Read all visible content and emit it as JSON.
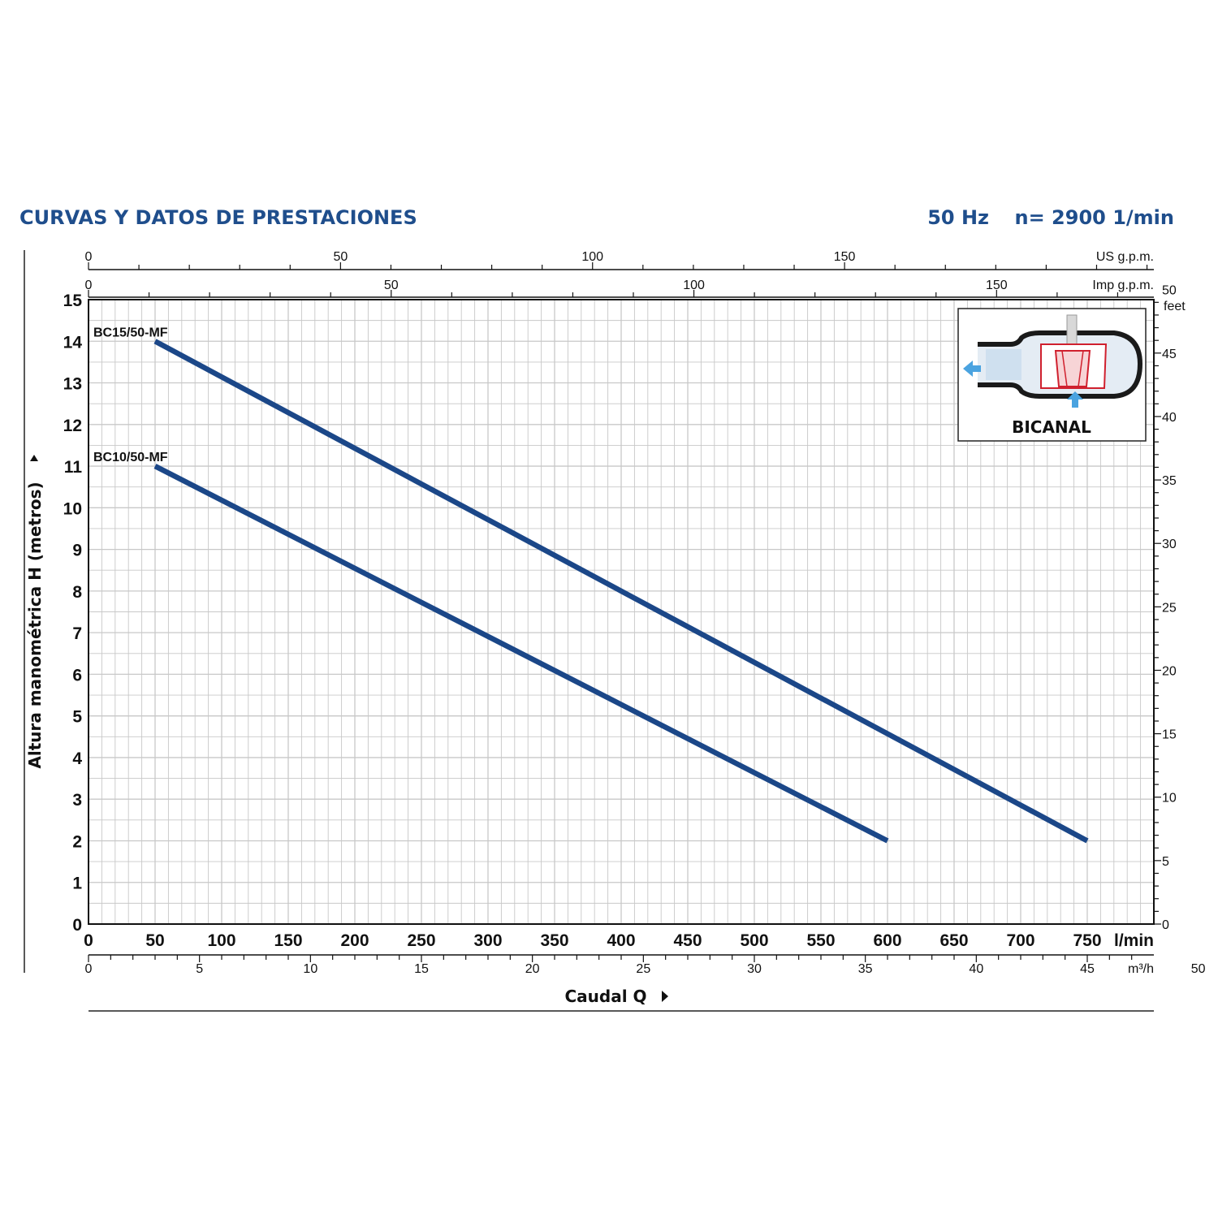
{
  "header": {
    "title": "CURVAS Y DATOS DE PRESTACIONES",
    "frequency": "50 Hz",
    "speed": "n= 2900  1/min"
  },
  "inset": {
    "label": "BICANAL",
    "icon": "bicanal-impeller-icon"
  },
  "colors": {
    "header": "#1f4e8c",
    "curve": "#1b4788",
    "grid": "#c8c8c8",
    "impeller": "#d0202e",
    "flow_arrow": "#4aa3e0"
  },
  "chart_data": {
    "type": "line",
    "xlabel": "Caudal Q",
    "ylabel": "Altura manométrica H (metros)",
    "xlim": [
      0,
      800
    ],
    "ylim": [
      0,
      15
    ],
    "grid": true,
    "x_unit_label": "l/min",
    "x_ticks": [
      0,
      50,
      100,
      150,
      200,
      250,
      300,
      350,
      400,
      450,
      500,
      550,
      600,
      650,
      700,
      750
    ],
    "y_ticks": [
      0,
      1,
      2,
      3,
      4,
      5,
      6,
      7,
      8,
      9,
      10,
      11,
      12,
      13,
      14,
      15
    ],
    "series": [
      {
        "name": "BC15/50-MF",
        "x": [
          50,
          750
        ],
        "y": [
          14,
          2
        ]
      },
      {
        "name": "BC10/50-MF",
        "x": [
          50,
          600
        ],
        "y": [
          11,
          2
        ]
      }
    ],
    "secondary_axes": {
      "m3h": {
        "label": "m³/h",
        "ticks": [
          0,
          5,
          10,
          15,
          20,
          25,
          30,
          35,
          40,
          45,
          50
        ],
        "lmin_per_unit": 16.6667,
        "minor_step": 1
      },
      "us_gpm": {
        "label": "US g.p.m.",
        "ticks": [
          0,
          50,
          100,
          150
        ],
        "lmin_per_unit": 3.785,
        "minor_step": 10
      },
      "imp_gpm": {
        "label": "Imp g.p.m.",
        "ticks": [
          0,
          50,
          100,
          150
        ],
        "lmin_per_unit": 4.546,
        "minor_step": 10
      },
      "feet": {
        "label": "feet",
        "ticks": [
          0,
          5,
          10,
          15,
          20,
          25,
          30,
          35,
          40,
          45,
          50
        ],
        "m_per_unit": 0.3048,
        "minor_step": 1
      }
    }
  }
}
